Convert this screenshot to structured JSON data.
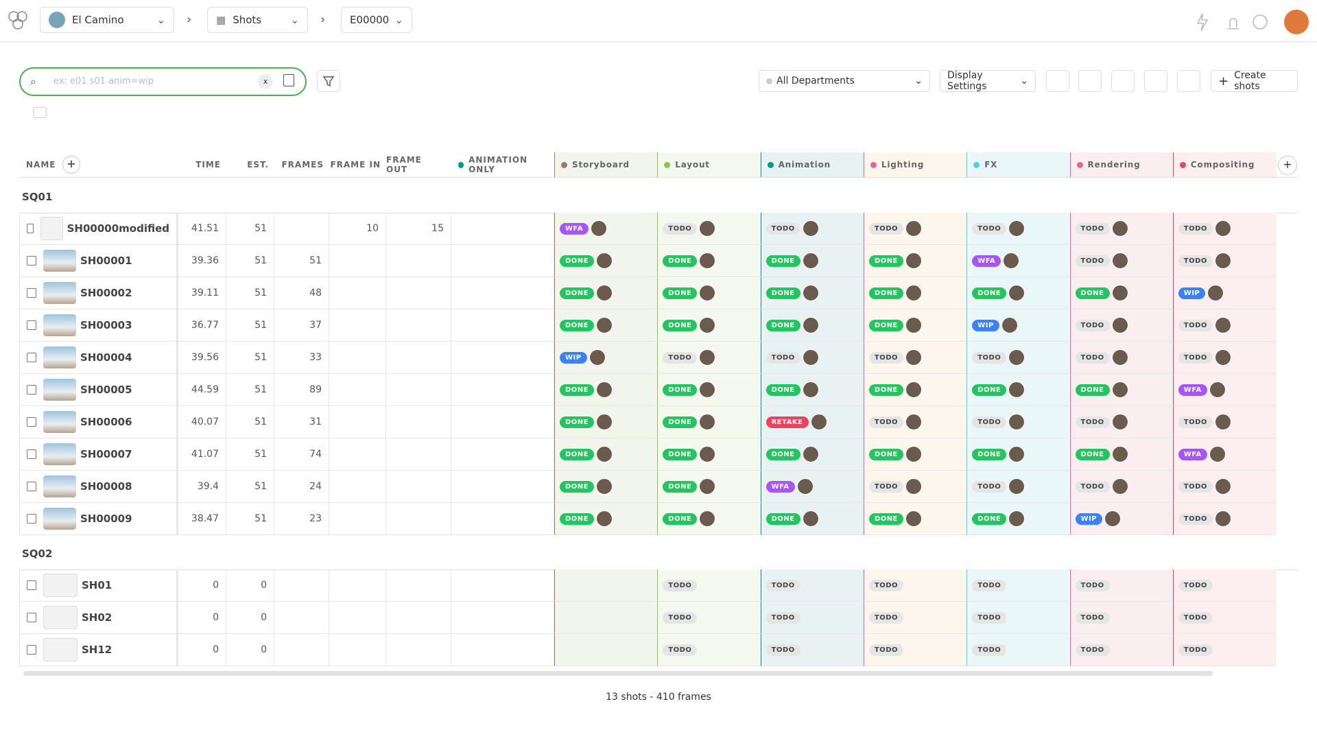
{
  "header": {
    "project": "El Camino",
    "section": "Shots",
    "episode": "E00000"
  },
  "toolbar": {
    "search_placeholder": "ex: e01 s01 anim=wip",
    "clear": "x",
    "departments": "All Departments",
    "display_settings": "Display Settings",
    "create": "Create shots"
  },
  "columns": [
    "NAME",
    "TIME",
    "EST.",
    "FRAMES",
    "FRAME IN",
    "FRAME OUT",
    "ANIMATION ONLY"
  ],
  "tasks": [
    {
      "name": "Storyboard",
      "color": "#9a7b6c",
      "bg": "#f1f5ec"
    },
    {
      "name": "Layout",
      "color": "#8bc34a",
      "bg": "#f4f8ee"
    },
    {
      "name": "Animation",
      "color": "#009688",
      "bg": "#e8f2f2"
    },
    {
      "name": "Lighting",
      "color": "#f06292",
      "bg": "#fdf6ec"
    },
    {
      "name": "FX",
      "color": "#4dd0e1",
      "bg": "#eaf7f8"
    },
    {
      "name": "Rendering",
      "color": "#f06292",
      "bg": "#fbeef1"
    },
    {
      "name": "Compositing",
      "color": "#ec407a",
      "bg": "#fdeef0"
    }
  ],
  "status_colors": {
    "DONE": "#22c55e",
    "WFA": "#a855f7",
    "WIP": "#3b82f6",
    "RETAKE": "#f43f5e",
    "TODO": "#e5e5e5"
  },
  "sequences": [
    {
      "name": "SQ01",
      "shots": [
        {
          "name": "SH00000modified",
          "time": "41.51",
          "est": "51",
          "frames": null,
          "frame_in": "10",
          "frame_out": "15",
          "tasks": [
            "WFA",
            "TODO",
            "TODO",
            "TODO",
            "TODO",
            "TODO",
            "TODO"
          ]
        },
        {
          "name": "SH00001",
          "time": "39.36",
          "est": "51",
          "frames": "51",
          "frame_in": null,
          "frame_out": null,
          "tasks": [
            "DONE",
            "DONE",
            "DONE",
            "DONE",
            "WFA",
            "TODO",
            "TODO"
          ]
        },
        {
          "name": "SH00002",
          "time": "39.11",
          "est": "51",
          "frames": "48",
          "frame_in": null,
          "frame_out": null,
          "tasks": [
            "DONE",
            "DONE",
            "DONE",
            "DONE",
            "DONE",
            "DONE",
            "WIP"
          ]
        },
        {
          "name": "SH00003",
          "time": "36.77",
          "est": "51",
          "frames": "37",
          "frame_in": null,
          "frame_out": null,
          "tasks": [
            "DONE",
            "DONE",
            "DONE",
            "DONE",
            "WIP",
            "TODO",
            "TODO"
          ]
        },
        {
          "name": "SH00004",
          "time": "39.56",
          "est": "51",
          "frames": "33",
          "frame_in": null,
          "frame_out": null,
          "tasks": [
            "WIP",
            "TODO",
            "TODO",
            "TODO",
            "TODO",
            "TODO",
            "TODO"
          ]
        },
        {
          "name": "SH00005",
          "time": "44.59",
          "est": "51",
          "frames": "89",
          "frame_in": null,
          "frame_out": null,
          "tasks": [
            "DONE",
            "DONE",
            "DONE",
            "DONE",
            "DONE",
            "DONE",
            "WFA"
          ]
        },
        {
          "name": "SH00006",
          "time": "40.07",
          "est": "51",
          "frames": "31",
          "frame_in": null,
          "frame_out": null,
          "tasks": [
            "DONE",
            "DONE",
            "RETAKE",
            "TODO",
            "TODO",
            "TODO",
            "TODO"
          ]
        },
        {
          "name": "SH00007",
          "time": "41.07",
          "est": "51",
          "frames": "74",
          "frame_in": null,
          "frame_out": null,
          "tasks": [
            "DONE",
            "DONE",
            "DONE",
            "DONE",
            "DONE",
            "DONE",
            "WFA"
          ]
        },
        {
          "name": "SH00008",
          "time": "39.4",
          "est": "51",
          "frames": "24",
          "frame_in": null,
          "frame_out": null,
          "tasks": [
            "DONE",
            "DONE",
            "WFA",
            "TODO",
            "TODO",
            "TODO",
            "TODO"
          ]
        },
        {
          "name": "SH00009",
          "time": "38.47",
          "est": "51",
          "frames": "23",
          "frame_in": null,
          "frame_out": null,
          "tasks": [
            "DONE",
            "DONE",
            "DONE",
            "DONE",
            "DONE",
            "WIP",
            "TODO"
          ]
        }
      ]
    },
    {
      "name": "SQ02",
      "shots": [
        {
          "name": "SH01",
          "time": "0",
          "est": "0",
          "frames": null,
          "frame_in": null,
          "frame_out": null,
          "tasks": [
            null,
            "TODO",
            "TODO",
            "TODO",
            "TODO",
            "TODO",
            "TODO"
          ]
        },
        {
          "name": "SH02",
          "time": "0",
          "est": "0",
          "frames": null,
          "frame_in": null,
          "frame_out": null,
          "tasks": [
            null,
            "TODO",
            "TODO",
            "TODO",
            "TODO",
            "TODO",
            "TODO"
          ]
        },
        {
          "name": "SH12",
          "time": "0",
          "est": "0",
          "frames": null,
          "frame_in": null,
          "frame_out": null,
          "tasks": [
            null,
            "TODO",
            "TODO",
            "TODO",
            "TODO",
            "TODO",
            "TODO"
          ]
        }
      ]
    }
  ],
  "footer": "13 shots - 410 frames"
}
